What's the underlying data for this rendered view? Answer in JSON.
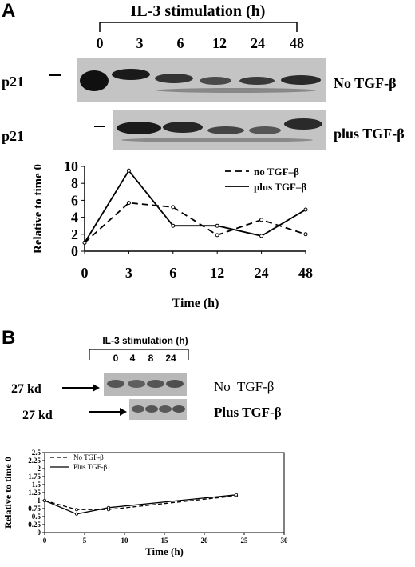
{
  "panelA": {
    "letter": "A",
    "stimulation_title": "IL-3 stimulation (h)",
    "lanes": [
      "0",
      "3",
      "6",
      "12",
      "24",
      "48"
    ],
    "row1": {
      "protein": "p21",
      "condition": "No TGF-β"
    },
    "row2": {
      "protein": "p21",
      "condition": "plus TGF-β"
    }
  },
  "panelB": {
    "letter": "B",
    "stimulation_title": "IL-3 stimulation (h)",
    "lanes": [
      "0",
      "4",
      "8",
      "24"
    ],
    "row1": {
      "marker": "27 kd",
      "condition": "No  TGF-β"
    },
    "row2": {
      "marker": "27 kd",
      "condition": "Plus TGF-β"
    }
  },
  "chart_data": [
    {
      "type": "line",
      "categories": [
        "0",
        "3",
        "6",
        "12",
        "24",
        "48"
      ],
      "series": [
        {
          "name": "no TGF–β",
          "style": "dashed",
          "values": [
            1,
            5.7,
            5.2,
            1.9,
            3.7,
            2.0
          ]
        },
        {
          "name": "plus TGF–β",
          "style": "solid",
          "values": [
            1,
            9.5,
            3.0,
            3.0,
            1.8,
            4.9
          ]
        }
      ],
      "ylabel": "Relative to time 0",
      "xlabel": "Time (h)",
      "ylim": [
        0,
        10
      ],
      "yticks": [
        "0",
        "2",
        "4",
        "6",
        "8",
        "10"
      ],
      "legend": "top-right"
    },
    {
      "type": "line",
      "x": [
        0,
        4,
        8,
        24
      ],
      "series": [
        {
          "name": "No TGF-β",
          "style": "dashed",
          "values": [
            1,
            0.72,
            0.72,
            1.15
          ]
        },
        {
          "name": "Plus TGF-β",
          "style": "solid",
          "values": [
            1,
            0.58,
            0.78,
            1.18
          ]
        }
      ],
      "ylabel": "Relative to time 0",
      "xlabel": "Time (h)",
      "xlim": [
        0,
        30
      ],
      "ylim": [
        0,
        2.5
      ],
      "xticks": [
        "0",
        "5",
        "10",
        "15",
        "20",
        "25",
        "30"
      ],
      "yticks": [
        "0",
        "0.25",
        "0.5",
        "0.75",
        "1",
        "1.25",
        "1.5",
        "1.75",
        "2",
        "2.25",
        "2.5"
      ],
      "legend": "top-left"
    }
  ]
}
